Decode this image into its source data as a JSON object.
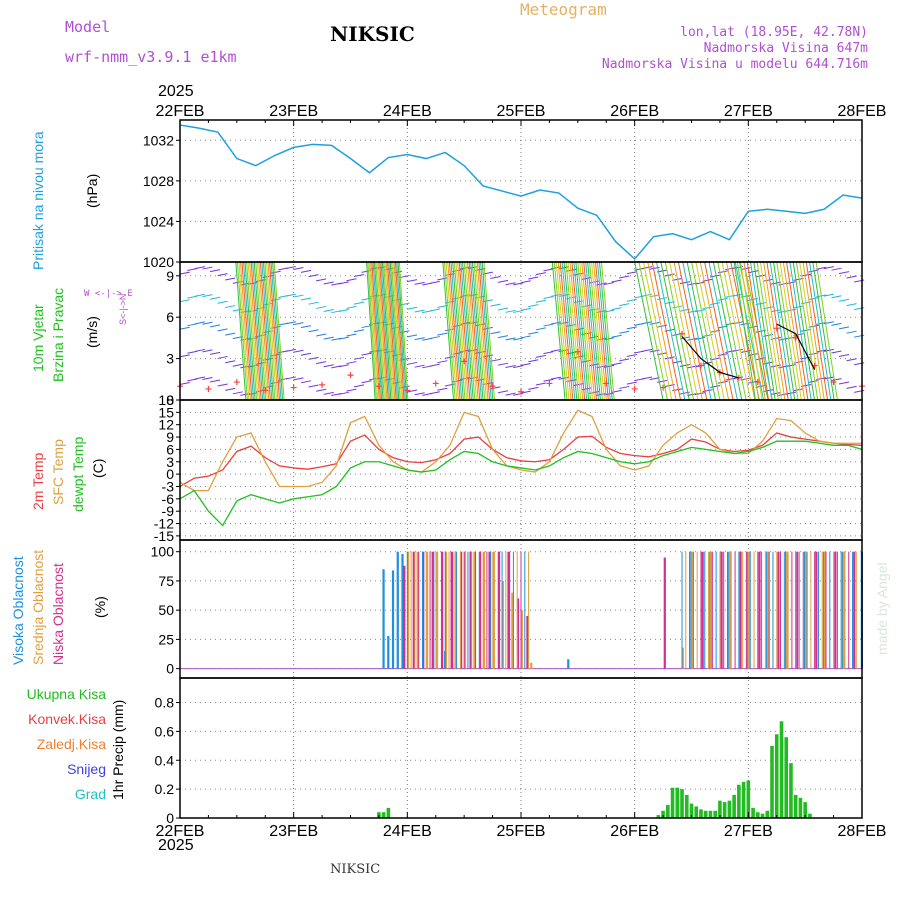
{
  "header": {
    "model_label": "Model",
    "model_name": "wrf-nmm_v3.9.1 e1km",
    "title": "NIKSIC",
    "meteogram_label": "Meteogram",
    "lonlat": "lon,lat (18.95E, 42.78N)",
    "elevation": "Nadmorska Visina 647m",
    "model_elevation": "Nadmorska Visina u modelu 644.716m"
  },
  "footer": {
    "station": "NIKSIC",
    "credit": "made by Angel"
  },
  "time_axis": {
    "year_top": "2025",
    "year_bottom": "2025",
    "days": [
      "22FEB",
      "23FEB",
      "24FEB",
      "25FEB",
      "26FEB",
      "27FEB",
      "28FEB"
    ]
  },
  "colors": {
    "pressure": "#1ea0e0",
    "temp2m": "#e84040",
    "sfc_temp": "#e0a040",
    "dewpt": "#20c020",
    "cloud_high": "#1e90e0",
    "cloud_mid": "#e0a040",
    "cloud_low": "#d03090",
    "precip_total": "#22bb22",
    "wind_gust": "#000000",
    "wind_speed_marker": "#ff4040"
  },
  "panels": {
    "pressure": {
      "label_line1": "Pritisak na nivou mora",
      "unit": "(hPa)",
      "ticks": [
        "1020",
        "1024",
        "1028",
        "1032"
      ]
    },
    "wind": {
      "label_line1": "10m Vjetar",
      "label_line2": "Brzina i Pravac",
      "unit": "(m/s)",
      "ticks": [
        "0",
        "3",
        "6",
        "9"
      ],
      "compass": {
        "n": "N",
        "s": "S",
        "w": "W",
        "e": "E",
        "arrow_h": "<-|->",
        "arrow_v": "<-|->"
      }
    },
    "temperature": {
      "label_line1": "2m Temp",
      "label_line2": "SFC Temp",
      "label_line3": "dewpt Temp",
      "unit": "(C)",
      "ticks": [
        "-15",
        "-12",
        "-9",
        "-6",
        "-3",
        "0",
        "3",
        "6",
        "9",
        "12",
        "15",
        "18"
      ]
    },
    "clouds": {
      "label_line1": "Visoka Oblacnost",
      "label_line2": "Srednja Oblacnost",
      "label_line3": "Niska Oblacnost",
      "unit": "(%)",
      "ticks": [
        "0",
        "25",
        "50",
        "75",
        "100"
      ]
    },
    "precip": {
      "legend": [
        "Ukupna Kisa",
        "Konvek.Kisa",
        "Zaledj.Kisa",
        "Snijeg",
        "Grad"
      ],
      "legend_colors": [
        "#22bb22",
        "#e84040",
        "#f08030",
        "#4040e0",
        "#20c0c0"
      ],
      "unit_label": "1hr Precip (mm)",
      "ticks": [
        "0",
        "0.2",
        "0.4",
        "0.6",
        "0.8"
      ]
    }
  },
  "chart_data": [
    {
      "type": "line",
      "title": "Pritisak na nivou mora",
      "ylabel": "(hPa)",
      "ylim": [
        1020,
        1034
      ],
      "x_hours": [
        0,
        4,
        8,
        12,
        16,
        20,
        24,
        28,
        32,
        36,
        40,
        44,
        48,
        52,
        56,
        60,
        64,
        72,
        76,
        80,
        84,
        88,
        92,
        96,
        100,
        104,
        108,
        112,
        116,
        120,
        124,
        128,
        132,
        136,
        140,
        144
      ],
      "values": [
        1033.5,
        1033.2,
        1032.8,
        1030.2,
        1029.5,
        1030.5,
        1031.3,
        1031.6,
        1031.5,
        1030.2,
        1028.8,
        1030.3,
        1030.6,
        1030.2,
        1030.8,
        1029.5,
        1027.5,
        1026.5,
        1027.1,
        1026.8,
        1025.3,
        1024.6,
        1022.0,
        1020.3,
        1022.5,
        1022.8,
        1022.2,
        1023.0,
        1022.2,
        1025.0,
        1025.2,
        1025.0,
        1024.8,
        1025.2,
        1026.6,
        1026.3
      ]
    },
    {
      "type": "line",
      "title": "10m Vjetar Brzina i Pravac",
      "ylabel": "(m/s)",
      "ylim": [
        0,
        10
      ],
      "x_hours": [
        0,
        6,
        12,
        18,
        24,
        30,
        36,
        42,
        48,
        54,
        60,
        66,
        72,
        78,
        84,
        90,
        96,
        102,
        106,
        110,
        114,
        118,
        122,
        126,
        130,
        134,
        138,
        144
      ],
      "speed": [
        1.0,
        0.8,
        1.3,
        0.7,
        0.9,
        1.1,
        1.8,
        1.0,
        0.7,
        1.2,
        2.8,
        1.0,
        0.6,
        1.2,
        3.5,
        1.2,
        0.8,
        0.9,
        4.8,
        2.5,
        2.0,
        1.6,
        1.3,
        5.2,
        4.5,
        2.5,
        1.3,
        1.0
      ],
      "gust": [
        null,
        null,
        null,
        null,
        null,
        null,
        null,
        null,
        null,
        null,
        3.0,
        null,
        null,
        null,
        3.8,
        null,
        null,
        null,
        4.6,
        3.0,
        2.0,
        1.6,
        null,
        5.5,
        4.8,
        2.2,
        null,
        null
      ]
    },
    {
      "type": "line",
      "title": "Temperature",
      "ylabel": "(C)",
      "ylim": [
        -15,
        18
      ],
      "x_hours": [
        0,
        3,
        6,
        9,
        12,
        15,
        18,
        21,
        24,
        27,
        30,
        33,
        36,
        39,
        42,
        45,
        48,
        51,
        54,
        57,
        60,
        63,
        66,
        69,
        72,
        75,
        78,
        81,
        84,
        87,
        90,
        93,
        96,
        99,
        102,
        105,
        108,
        111,
        114,
        117,
        120,
        123,
        126,
        129,
        132,
        135,
        138,
        141,
        144
      ],
      "series": [
        {
          "name": "2m Temp",
          "values": [
            -3.0,
            -1.0,
            -0.5,
            1.0,
            5.5,
            6.8,
            4.0,
            2.0,
            1.5,
            1.2,
            1.8,
            2.5,
            8.0,
            9.5,
            6.0,
            4.0,
            3.0,
            2.8,
            3.5,
            5.0,
            8.5,
            9.0,
            6.0,
            4.0,
            3.2,
            3.0,
            3.5,
            6.0,
            9.0,
            9.2,
            6.5,
            5.0,
            4.5,
            4.2,
            5.0,
            6.0,
            8.5,
            7.8,
            6.0,
            5.5,
            5.8,
            7.0,
            10.0,
            9.0,
            8.5,
            8.0,
            7.5,
            7.2,
            7.0
          ]
        },
        {
          "name": "SFC Temp",
          "values": [
            -2.0,
            -4.0,
            -4.0,
            3.0,
            9.0,
            10.0,
            3.0,
            -3.0,
            -3.0,
            -3.0,
            -2.0,
            2.0,
            12.5,
            14.0,
            7.0,
            3.0,
            1.0,
            0.5,
            3.0,
            7.0,
            15.0,
            14.0,
            6.0,
            2.0,
            1.0,
            0.5,
            3.0,
            10.0,
            15.5,
            14.0,
            6.0,
            2.0,
            1.0,
            2.0,
            7.0,
            10.0,
            12.0,
            10.0,
            6.0,
            5.0,
            5.0,
            8.0,
            13.5,
            13.0,
            10.0,
            8.0,
            7.5,
            7.5,
            7.5
          ]
        },
        {
          "name": "dewpt Temp",
          "values": [
            -6.0,
            -4.0,
            -9.0,
            -12.5,
            -6.5,
            -5.0,
            -6.0,
            -7.0,
            -6.0,
            -5.5,
            -5.0,
            -3.0,
            1.5,
            3.0,
            3.0,
            2.0,
            1.0,
            0.5,
            1.0,
            3.5,
            5.5,
            5.0,
            3.0,
            2.0,
            1.5,
            1.0,
            2.0,
            4.0,
            5.5,
            5.0,
            4.0,
            3.0,
            2.5,
            3.0,
            4.5,
            5.5,
            6.5,
            6.0,
            5.5,
            5.0,
            5.5,
            6.5,
            8.0,
            8.0,
            8.0,
            7.5,
            7.0,
            7.0,
            6.0
          ]
        }
      ]
    },
    {
      "type": "bar",
      "title": "Oblacnost",
      "ylabel": "(%)",
      "ylim": [
        0,
        100
      ],
      "series": [
        {
          "name": "Visoka Oblacnost",
          "x_hours": [
            43,
            44,
            45,
            46,
            47,
            56,
            82,
            108,
            112,
            116,
            120,
            124,
            128,
            132,
            136,
            140,
            144
          ],
          "values": [
            85,
            28,
            84,
            100,
            98,
            15,
            8,
            100,
            100,
            100,
            100,
            100,
            100,
            100,
            100,
            100,
            100
          ]
        },
        {
          "name": "Srednja Oblacnost",
          "x_hours": [
            48,
            50,
            52,
            54,
            56,
            58,
            60,
            62,
            64,
            66,
            68,
            70,
            72,
            74,
            106,
            108,
            112,
            116,
            120,
            124,
            128,
            132,
            136,
            140
          ],
          "values": [
            100,
            100,
            100,
            100,
            100,
            100,
            100,
            100,
            100,
            100,
            75,
            65,
            50,
            5,
            18,
            100,
            100,
            100,
            100,
            100,
            100,
            100,
            100,
            100
          ]
        },
        {
          "name": "Niska Oblacnost",
          "x_hours": [
            47,
            49,
            51,
            53,
            55,
            57,
            59,
            61,
            63,
            65,
            67,
            69,
            71,
            73,
            102,
            110,
            114,
            118,
            122,
            126,
            130,
            134,
            138,
            142
          ],
          "values": [
            88,
            100,
            100,
            100,
            100,
            100,
            100,
            100,
            100,
            100,
            100,
            100,
            60,
            45,
            95,
            100,
            100,
            100,
            100,
            100,
            100,
            100,
            100,
            100
          ]
        }
      ]
    },
    {
      "type": "bar",
      "title": "1hr Precip",
      "ylabel": "(mm)",
      "ylim": [
        0,
        0.9
      ],
      "series": [
        {
          "name": "Ukupna Kisa",
          "x_hours": [
            42,
            43,
            44,
            101,
            102,
            103,
            104,
            105,
            106,
            107,
            108,
            109,
            110,
            111,
            112,
            113,
            114,
            115,
            116,
            117,
            118,
            119,
            120,
            121,
            122,
            123,
            124,
            125,
            126,
            127,
            128,
            129,
            130,
            131,
            132,
            133
          ],
          "values": [
            0.04,
            0.04,
            0.07,
            0.02,
            0.05,
            0.09,
            0.21,
            0.21,
            0.2,
            0.16,
            0.1,
            0.08,
            0.06,
            0.05,
            0.05,
            0.05,
            0.12,
            0.11,
            0.12,
            0.16,
            0.23,
            0.25,
            0.26,
            0.07,
            0.04,
            0.03,
            0.05,
            0.5,
            0.58,
            0.67,
            0.56,
            0.38,
            0.16,
            0.14,
            0.11,
            0.03
          ]
        }
      ]
    }
  ]
}
